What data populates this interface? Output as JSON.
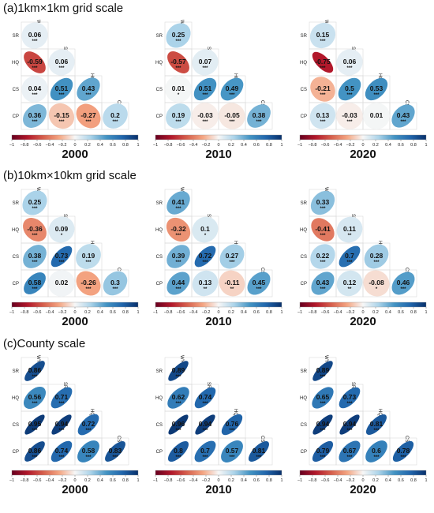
{
  "chart_data": {
    "type": "heatmap",
    "variables": [
      "WY",
      "SR",
      "HQ",
      "CS",
      "CP"
    ],
    "colorbar": {
      "range": [
        -1,
        1
      ],
      "ticks": [
        "−1",
        "−0.8",
        "−0.6",
        "−0.4",
        "−0.2",
        "0",
        "0.2",
        "0.4",
        "0.6",
        "0.8",
        "1"
      ],
      "colors": {
        "negative": "#b2182b",
        "zero": "#f7f7f7",
        "positive": "#2166ac"
      }
    },
    "sections": [
      {
        "title": "(a)1km×1km grid scale",
        "panels": [
          {
            "year": "2000",
            "cells": [
              {
                "r": "SR",
                "c": "WY",
                "v": 0.06,
                "stars": "***"
              },
              {
                "r": "HQ",
                "c": "WY",
                "v": -0.59,
                "stars": "***"
              },
              {
                "r": "HQ",
                "c": "SR",
                "v": 0.06,
                "stars": "***"
              },
              {
                "r": "CS",
                "c": "WY",
                "v": 0.04,
                "stars": "***"
              },
              {
                "r": "CS",
                "c": "SR",
                "v": 0.51,
                "stars": "***"
              },
              {
                "r": "CS",
                "c": "HQ",
                "v": 0.43,
                "stars": "***"
              },
              {
                "r": "CP",
                "c": "WY",
                "v": 0.36,
                "stars": "***"
              },
              {
                "r": "CP",
                "c": "SR",
                "v": -0.15,
                "stars": "***"
              },
              {
                "r": "CP",
                "c": "HQ",
                "v": -0.27,
                "stars": "***"
              },
              {
                "r": "CP",
                "c": "CS",
                "v": 0.2,
                "stars": "***"
              }
            ]
          },
          {
            "year": "2010",
            "cells": [
              {
                "r": "SR",
                "c": "WY",
                "v": 0.25,
                "stars": "***"
              },
              {
                "r": "HQ",
                "c": "WY",
                "v": -0.57,
                "stars": "***"
              },
              {
                "r": "HQ",
                "c": "SR",
                "v": 0.07,
                "stars": "***"
              },
              {
                "r": "CS",
                "c": "WY",
                "v": 0.01,
                "stars": "*"
              },
              {
                "r": "CS",
                "c": "SR",
                "v": 0.51,
                "stars": "***"
              },
              {
                "r": "CS",
                "c": "HQ",
                "v": 0.49,
                "stars": "***"
              },
              {
                "r": "CP",
                "c": "WY",
                "v": 0.19,
                "stars": "***"
              },
              {
                "r": "CP",
                "c": "SR",
                "v": -0.03,
                "stars": "***"
              },
              {
                "r": "CP",
                "c": "HQ",
                "v": -0.05,
                "stars": "***"
              },
              {
                "r": "CP",
                "c": "CS",
                "v": 0.38,
                "stars": "***"
              }
            ]
          },
          {
            "year": "2020",
            "cells": [
              {
                "r": "SR",
                "c": "WY",
                "v": 0.15,
                "stars": "***"
              },
              {
                "r": "HQ",
                "c": "WY",
                "v": -0.75,
                "stars": "***"
              },
              {
                "r": "HQ",
                "c": "SR",
                "v": 0.06,
                "stars": "***"
              },
              {
                "r": "CS",
                "c": "WY",
                "v": -0.21,
                "stars": "***"
              },
              {
                "r": "CS",
                "c": "SR",
                "v": 0.5,
                "stars": "***"
              },
              {
                "r": "CS",
                "c": "HQ",
                "v": 0.53,
                "stars": "***"
              },
              {
                "r": "CP",
                "c": "WY",
                "v": 0.13,
                "stars": "***"
              },
              {
                "r": "CP",
                "c": "SR",
                "v": -0.03,
                "stars": "***"
              },
              {
                "r": "CP",
                "c": "HQ",
                "v": 0.01,
                "stars": ""
              },
              {
                "r": "CP",
                "c": "CS",
                "v": 0.43,
                "stars": "***"
              }
            ]
          }
        ]
      },
      {
        "title": "(b)10km×10km grid scale",
        "panels": [
          {
            "year": "2000",
            "cells": [
              {
                "r": "SR",
                "c": "WY",
                "v": 0.25,
                "stars": "***"
              },
              {
                "r": "HQ",
                "c": "WY",
                "v": -0.36,
                "stars": "***"
              },
              {
                "r": "HQ",
                "c": "SR",
                "v": 0.09,
                "stars": "*"
              },
              {
                "r": "CS",
                "c": "WY",
                "v": 0.38,
                "stars": "***"
              },
              {
                "r": "CS",
                "c": "SR",
                "v": 0.73,
                "stars": "***"
              },
              {
                "r": "CS",
                "c": "HQ",
                "v": 0.19,
                "stars": "***"
              },
              {
                "r": "CP",
                "c": "WY",
                "v": 0.58,
                "stars": "***"
              },
              {
                "r": "CP",
                "c": "SR",
                "v": 0.02,
                "stars": ""
              },
              {
                "r": "CP",
                "c": "HQ",
                "v": -0.26,
                "stars": "***"
              },
              {
                "r": "CP",
                "c": "CS",
                "v": 0.3,
                "stars": "***"
              }
            ]
          },
          {
            "year": "2010",
            "cells": [
              {
                "r": "SR",
                "c": "WY",
                "v": 0.41,
                "stars": "***"
              },
              {
                "r": "HQ",
                "c": "WY",
                "v": -0.32,
                "stars": "***"
              },
              {
                "r": "HQ",
                "c": "SR",
                "v": 0.1,
                "stars": "*"
              },
              {
                "r": "CS",
                "c": "WY",
                "v": 0.39,
                "stars": "***"
              },
              {
                "r": "CS",
                "c": "SR",
                "v": 0.72,
                "stars": "***"
              },
              {
                "r": "CS",
                "c": "HQ",
                "v": 0.27,
                "stars": "***"
              },
              {
                "r": "CP",
                "c": "WY",
                "v": 0.44,
                "stars": "***"
              },
              {
                "r": "CP",
                "c": "SR",
                "v": 0.13,
                "stars": "**"
              },
              {
                "r": "CP",
                "c": "HQ",
                "v": -0.11,
                "stars": "**"
              },
              {
                "r": "CP",
                "c": "CS",
                "v": 0.45,
                "stars": "***"
              }
            ]
          },
          {
            "year": "2020",
            "cells": [
              {
                "r": "SR",
                "c": "WY",
                "v": 0.33,
                "stars": "***"
              },
              {
                "r": "HQ",
                "c": "WY",
                "v": -0.41,
                "stars": "***"
              },
              {
                "r": "HQ",
                "c": "SR",
                "v": 0.11,
                "stars": "**"
              },
              {
                "r": "CS",
                "c": "WY",
                "v": 0.22,
                "stars": "***"
              },
              {
                "r": "CS",
                "c": "SR",
                "v": 0.7,
                "stars": "***"
              },
              {
                "r": "CS",
                "c": "HQ",
                "v": 0.28,
                "stars": "***"
              },
              {
                "r": "CP",
                "c": "WY",
                "v": 0.43,
                "stars": "***"
              },
              {
                "r": "CP",
                "c": "SR",
                "v": 0.12,
                "stars": "**"
              },
              {
                "r": "CP",
                "c": "HQ",
                "v": -0.08,
                "stars": "*"
              },
              {
                "r": "CP",
                "c": "CS",
                "v": 0.46,
                "stars": "***"
              }
            ]
          }
        ]
      },
      {
        "title": "(c)County scale",
        "panels": [
          {
            "year": "2000",
            "cells": [
              {
                "r": "SR",
                "c": "WY",
                "v": 0.86,
                "stars": "***"
              },
              {
                "r": "HQ",
                "c": "WY",
                "v": 0.56,
                "stars": "***"
              },
              {
                "r": "HQ",
                "c": "SR",
                "v": 0.71,
                "stars": "***"
              },
              {
                "r": "CS",
                "c": "WY",
                "v": 0.95,
                "stars": "***"
              },
              {
                "r": "CS",
                "c": "SR",
                "v": 0.94,
                "stars": "***"
              },
              {
                "r": "CS",
                "c": "HQ",
                "v": 0.72,
                "stars": "***"
              },
              {
                "r": "CP",
                "c": "WY",
                "v": 0.86,
                "stars": "***"
              },
              {
                "r": "CP",
                "c": "SR",
                "v": 0.74,
                "stars": "***"
              },
              {
                "r": "CP",
                "c": "HQ",
                "v": 0.58,
                "stars": "***"
              },
              {
                "r": "CP",
                "c": "CS",
                "v": 0.83,
                "stars": "***"
              }
            ]
          },
          {
            "year": "2010",
            "cells": [
              {
                "r": "SR",
                "c": "WY",
                "v": 0.89,
                "stars": "***"
              },
              {
                "r": "HQ",
                "c": "WY",
                "v": 0.62,
                "stars": "***"
              },
              {
                "r": "HQ",
                "c": "SR",
                "v": 0.74,
                "stars": "***"
              },
              {
                "r": "CS",
                "c": "WY",
                "v": 0.96,
                "stars": "***"
              },
              {
                "r": "CS",
                "c": "SR",
                "v": 0.94,
                "stars": "***"
              },
              {
                "r": "CS",
                "c": "HQ",
                "v": 0.76,
                "stars": "***"
              },
              {
                "r": "CP",
                "c": "WY",
                "v": 0.8,
                "stars": "***"
              },
              {
                "r": "CP",
                "c": "SR",
                "v": 0.7,
                "stars": "***"
              },
              {
                "r": "CP",
                "c": "HQ",
                "v": 0.57,
                "stars": "***"
              },
              {
                "r": "CP",
                "c": "CS",
                "v": 0.81,
                "stars": "***"
              }
            ]
          },
          {
            "year": "2020",
            "cells": [
              {
                "r": "SR",
                "c": "WY",
                "v": 0.89,
                "stars": "***"
              },
              {
                "r": "HQ",
                "c": "WY",
                "v": 0.65,
                "stars": "***"
              },
              {
                "r": "HQ",
                "c": "SR",
                "v": 0.73,
                "stars": "***"
              },
              {
                "r": "CS",
                "c": "WY",
                "v": 0.94,
                "stars": "***"
              },
              {
                "r": "CS",
                "c": "SR",
                "v": 0.94,
                "stars": "***"
              },
              {
                "r": "CS",
                "c": "HQ",
                "v": 0.81,
                "stars": "***"
              },
              {
                "r": "CP",
                "c": "WY",
                "v": 0.79,
                "stars": "***"
              },
              {
                "r": "CP",
                "c": "SR",
                "v": 0.67,
                "stars": "***"
              },
              {
                "r": "CP",
                "c": "HQ",
                "v": 0.6,
                "stars": "***"
              },
              {
                "r": "CP",
                "c": "CS",
                "v": 0.78,
                "stars": "***"
              }
            ]
          }
        ]
      }
    ]
  }
}
